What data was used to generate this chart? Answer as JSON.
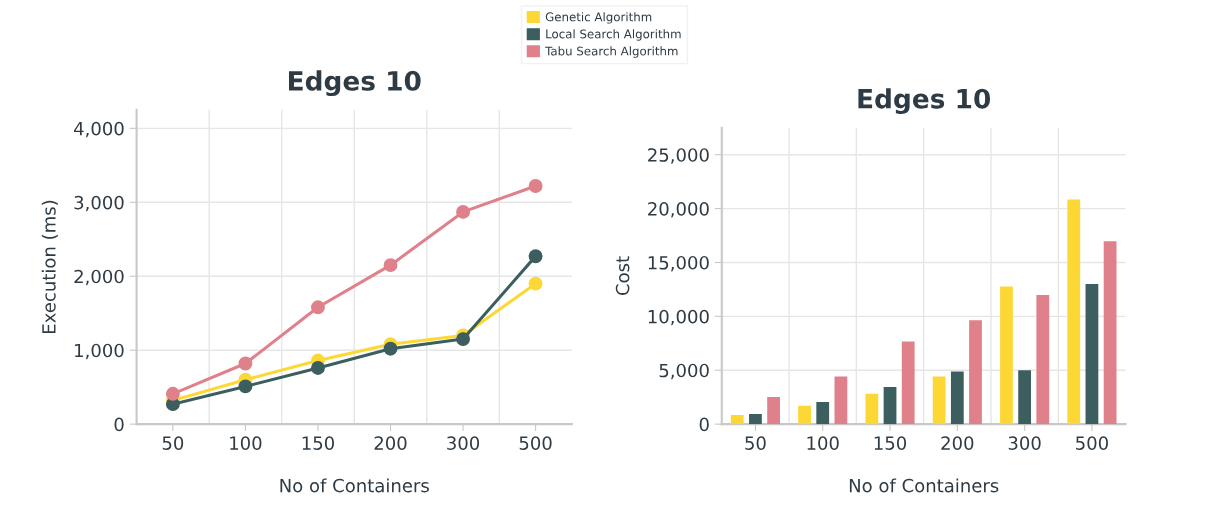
{
  "chart_data": [
    {
      "type": "line",
      "title": "Edges 10",
      "xlabel": "No of Containers",
      "ylabel": "Execution (ms)",
      "categories": [
        "50",
        "100",
        "150",
        "200",
        "300",
        "500"
      ],
      "ylim": [
        0,
        4250
      ],
      "yticks": [
        {
          "value": 0,
          "label": "0"
        },
        {
          "value": 1000,
          "label": "1,000"
        },
        {
          "value": 2000,
          "label": "2,000"
        },
        {
          "value": 3000,
          "label": "3,000"
        },
        {
          "value": 4000,
          "label": "4,000"
        }
      ],
      "grid": true,
      "legend": "top",
      "marker": "circle",
      "series": [
        {
          "name": "Genetic Algorithm",
          "color": "#fdd835",
          "values": [
            320,
            600,
            860,
            1080,
            1200,
            1900
          ]
        },
        {
          "name": "Local Search Algorithm",
          "color": "#3d5e5f",
          "values": [
            270,
            510,
            760,
            1020,
            1150,
            2270
          ]
        },
        {
          "name": "Tabu Search Algorithm",
          "color": "#e0808b",
          "values": [
            410,
            820,
            1580,
            2150,
            2870,
            3220
          ]
        }
      ]
    },
    {
      "type": "bar",
      "title": "Edges 10",
      "xlabel": "No of Containers",
      "ylabel": "Cost",
      "categories": [
        "50",
        "100",
        "150",
        "200",
        "300",
        "500"
      ],
      "ylim": [
        0,
        27500
      ],
      "yticks": [
        {
          "value": 0,
          "label": "0"
        },
        {
          "value": 5000,
          "label": "5,000"
        },
        {
          "value": 10000,
          "label": "10,000"
        },
        {
          "value": 15000,
          "label": "15,000"
        },
        {
          "value": 20000,
          "label": "20,000"
        },
        {
          "value": 25000,
          "label": "25,000"
        }
      ],
      "grid": true,
      "legend": "top",
      "series": [
        {
          "name": "Genetic Algorithm",
          "color": "#fdd835",
          "values": [
            840,
            1710,
            2830,
            4410,
            12760,
            20840
          ]
        },
        {
          "name": "Local Search Algorithm",
          "color": "#3d5e5f",
          "values": [
            930,
            2050,
            3450,
            4880,
            5000,
            13010
          ]
        },
        {
          "name": "Tabu Search Algorithm",
          "color": "#e0808b",
          "values": [
            2520,
            4410,
            7670,
            9630,
            11990,
            16960
          ]
        }
      ]
    }
  ]
}
